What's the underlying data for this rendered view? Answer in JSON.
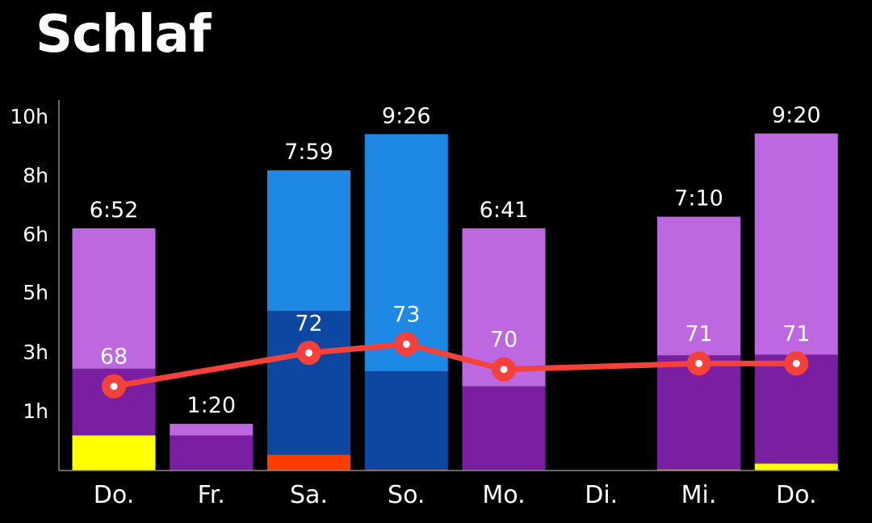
{
  "title": "Schlaf",
  "chart_data": {
    "type": "bar",
    "stacked": true,
    "categories": [
      "Do.",
      "Fr.",
      "Sa.",
      "So.",
      "Mo.",
      "Di.",
      "Mi.",
      "Do."
    ],
    "y_ticks": [
      "1h",
      "3h",
      "5h",
      "6h",
      "8h",
      "10h"
    ],
    "totals": [
      "6:52",
      "1:20",
      "7:59",
      "9:26",
      "6:41",
      "",
      "7:10",
      "9:20"
    ],
    "stacks": [
      [
        {
          "h": 1.0,
          "color": "#ffff00"
        },
        {
          "h": 1.9,
          "color": "#7b1fa2"
        },
        {
          "h": 4.0,
          "color": "#bd68e0"
        }
      ],
      [
        {
          "h": 1.0,
          "color": "#7b1fa2"
        },
        {
          "h": 0.33,
          "color": "#bd68e0"
        }
      ],
      [
        {
          "h": 0.45,
          "color": "#ff3d00"
        },
        {
          "h": 4.1,
          "color": "#0d47a1"
        },
        {
          "h": 4.0,
          "color": "#1e88e5"
        }
      ],
      [
        {
          "h": 0.03,
          "color": "#ff3d00"
        },
        {
          "h": 2.8,
          "color": "#0d47a1"
        },
        {
          "h": 6.75,
          "color": "#1e88e5"
        }
      ],
      [
        {
          "h": 2.4,
          "color": "#7b1fa2"
        },
        {
          "h": 4.5,
          "color": "#bd68e0"
        }
      ],
      [],
      [
        {
          "h": 0.03,
          "color": "#ffff00"
        },
        {
          "h": 3.25,
          "color": "#7b1fa2"
        },
        {
          "h": 3.95,
          "color": "#bd68e0"
        }
      ],
      [
        {
          "h": 0.2,
          "color": "#ffff00"
        },
        {
          "h": 3.1,
          "color": "#7b1fa2"
        },
        {
          "h": 6.3,
          "color": "#bd68e0"
        }
      ]
    ],
    "score_series": {
      "color": "#f4413a",
      "values": [
        68,
        null,
        72,
        73,
        70,
        null,
        71,
        71
      ],
      "labels": [
        "68",
        "",
        "72",
        "73",
        "70",
        "",
        "71",
        "71"
      ],
      "y_positions_hours": [
        2.4,
        null,
        3.35,
        3.6,
        2.88,
        null,
        3.05,
        3.05
      ]
    }
  }
}
